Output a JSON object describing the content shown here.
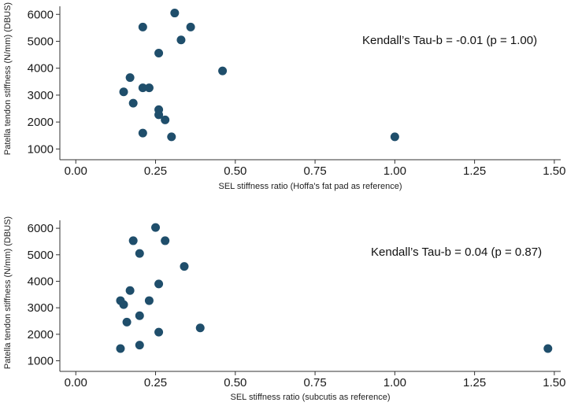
{
  "chart_data": [
    {
      "type": "scatter",
      "xlabel": "SEL stiffness ratio (Hoffa's fat pad as reference)",
      "ylabel": "Patella tendon stiffness (N/mm) (DBUS)",
      "xlim": [
        -0.05,
        1.52
      ],
      "ylim": [
        600,
        6300
      ],
      "xticks": [
        "0.00",
        "0.25",
        "0.50",
        "0.75",
        "1.00",
        "1.25",
        "1.50"
      ],
      "yticks": [
        "1000",
        "2000",
        "3000",
        "4000",
        "5000",
        "6000"
      ],
      "annotation": "Kendall’s Tau-b = -0.01 (p = 1.00)",
      "marker_color": "#1f4e6b",
      "grid": false,
      "points": [
        {
          "x": 0.31,
          "y": 6050
        },
        {
          "x": 0.21,
          "y": 5530
        },
        {
          "x": 0.36,
          "y": 5530
        },
        {
          "x": 0.33,
          "y": 5050
        },
        {
          "x": 0.26,
          "y": 4560
        },
        {
          "x": 0.46,
          "y": 3900
        },
        {
          "x": 0.17,
          "y": 3650
        },
        {
          "x": 0.21,
          "y": 3270
        },
        {
          "x": 0.23,
          "y": 3270
        },
        {
          "x": 0.15,
          "y": 3120
        },
        {
          "x": 0.18,
          "y": 2700
        },
        {
          "x": 0.26,
          "y": 2460
        },
        {
          "x": 0.26,
          "y": 2270
        },
        {
          "x": 0.28,
          "y": 2080
        },
        {
          "x": 0.21,
          "y": 1590
        },
        {
          "x": 0.3,
          "y": 1450
        },
        {
          "x": 1.0,
          "y": 1450
        }
      ]
    },
    {
      "type": "scatter",
      "xlabel": "SEL stiffness ratio (subcutis as reference)",
      "ylabel": "Patella tendon stiffness (N/mm) (DBUS)",
      "xlim": [
        -0.05,
        1.52
      ],
      "ylim": [
        600,
        6300
      ],
      "xticks": [
        "0.00",
        "0.25",
        "0.50",
        "0.75",
        "1.00",
        "1.25",
        "1.50"
      ],
      "yticks": [
        "1000",
        "2000",
        "3000",
        "4000",
        "5000",
        "6000"
      ],
      "annotation": "Kendall’s Tau-b = 0.04 (p = 0.87)",
      "marker_color": "#1f4e6b",
      "grid": false,
      "points": [
        {
          "x": 0.25,
          "y": 6030
        },
        {
          "x": 0.18,
          "y": 5530
        },
        {
          "x": 0.28,
          "y": 5530
        },
        {
          "x": 0.2,
          "y": 5050
        },
        {
          "x": 0.34,
          "y": 4560
        },
        {
          "x": 0.26,
          "y": 3900
        },
        {
          "x": 0.17,
          "y": 3650
        },
        {
          "x": 0.14,
          "y": 3270
        },
        {
          "x": 0.23,
          "y": 3270
        },
        {
          "x": 0.15,
          "y": 3120
        },
        {
          "x": 0.2,
          "y": 2700
        },
        {
          "x": 0.16,
          "y": 2460
        },
        {
          "x": 0.39,
          "y": 2240
        },
        {
          "x": 0.26,
          "y": 2080
        },
        {
          "x": 0.2,
          "y": 1590
        },
        {
          "x": 0.14,
          "y": 1460
        },
        {
          "x": 1.48,
          "y": 1460
        }
      ]
    }
  ]
}
